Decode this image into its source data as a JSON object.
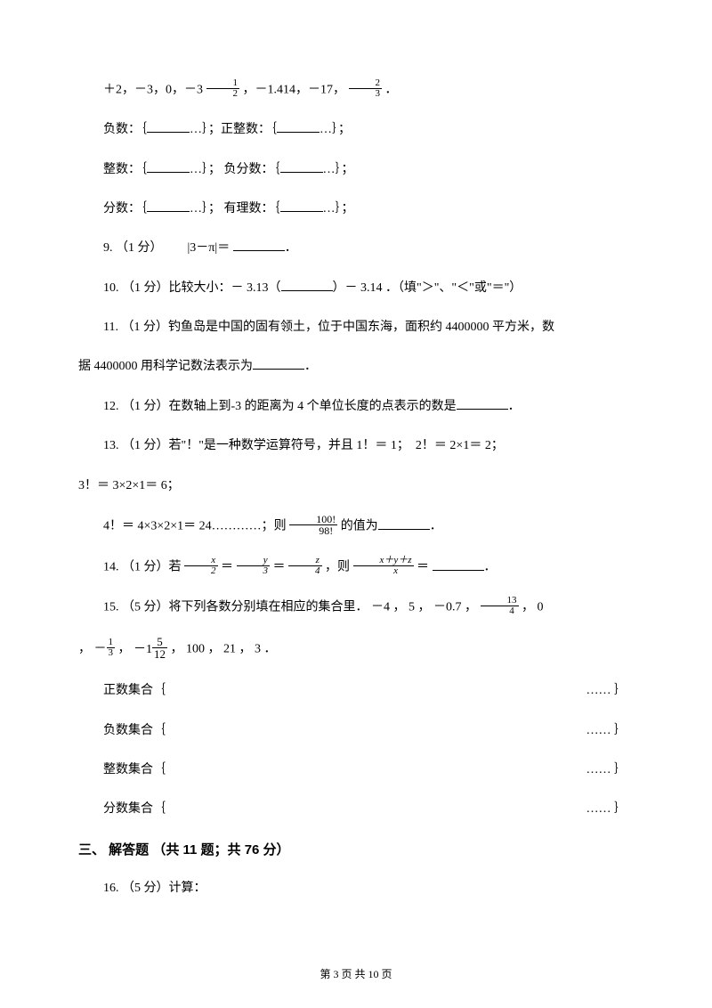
{
  "q8": {
    "line1_prefix": "＋2，－3，0，－3 ",
    "frac1": {
      "num": "1",
      "den": "2"
    },
    "line1_mid": " ，－1.414，－17， ",
    "frac2": {
      "num": "2",
      "den": "3"
    },
    "line1_suffix": " ．",
    "row1_a": "负数：｛",
    "row1_b": "…｝；正整数：｛",
    "row1_c": "…｝；",
    "row2_a": "整数：｛",
    "row2_b": "…｝； 负分数：｛",
    "row2_c": "…｝；",
    "row3_a": "分数：｛",
    "row3_b": "…｝；  有理数：｛",
    "row3_c": "…｝；"
  },
  "q9": {
    "prefix": "9. （1 分）",
    "abs": "|3－π|",
    "eq": "＝ ",
    "suffix": "．"
  },
  "q10": {
    "text_a": "10. （1 分）比较大小：－ 3.13（",
    "text_b": "）－ 3.14 ．（填\"＞\"、\"＜\"或\"＝\"）"
  },
  "q11": {
    "line1": "11.  （1 分）钓鱼岛是中国的固有领土，位于中国东海，面积约 4400000 平方米，数",
    "line2_a": "据 4400000 用科学记数法表示为",
    "line2_b": "．"
  },
  "q12": {
    "text_a": "12. （1 分）在数轴上到-3 的距离为 4 个单位长度的点表示的数是",
    "text_b": "．"
  },
  "q13": {
    "line1": "13.  （1 分）若\"！\"是一种数学运算符号，并且 1！＝ 1；　2！＝ 2×1＝ 2；",
    "line2": "3！＝ 3×2×1＝ 6；",
    "line3_a": "4！＝ 4×3×2×1＝ 24…………；则 ",
    "frac": {
      "num": "100!",
      "den": "98!"
    },
    "line3_b": " 的值为",
    "line3_c": "．"
  },
  "q14": {
    "text_a": "14. （1 分）若 ",
    "frac1": {
      "num": "x",
      "den": "2"
    },
    "eq1": "＝",
    "frac2": {
      "num": "y",
      "den": "3"
    },
    "eq2": "＝",
    "frac3": {
      "num": "z",
      "den": "4"
    },
    "text_b": " ，则 ",
    "frac4": {
      "num": "x＋y＋z",
      "den": "x"
    },
    "text_c": "＝ ",
    "text_d": "．"
  },
  "q15": {
    "line1_a": "15. （5 分）将下列各数分别填在相应的集合里．",
    "line1_b": "－4 ， 5 ，",
    "line1_c": "－0.7",
    "line1_d": " ， ",
    "frac1": {
      "num": "13",
      "den": "4"
    },
    "line1_e": " ， ",
    "line1_f": "0",
    "line2_a": "， ",
    "frac2": {
      "num": "1",
      "den": "3"
    },
    "line2_b": " ， ",
    "mixed_int": "－1",
    "frac3": {
      "num": "5",
      "den": "12"
    },
    "line2_c": " ， 100 ， 21 ， 3 ．",
    "set1_a": "正数集合｛",
    "set2_a": "负数集合｛",
    "set3_a": "整数集合｛",
    "set4_a": "分数集合｛",
    "dots": "…… ｝"
  },
  "section3": "三、 解答题 （共 11 题；共 76 分）",
  "q16": "16. （5 分）计算：",
  "footer": "第 3 页 共 10 页"
}
